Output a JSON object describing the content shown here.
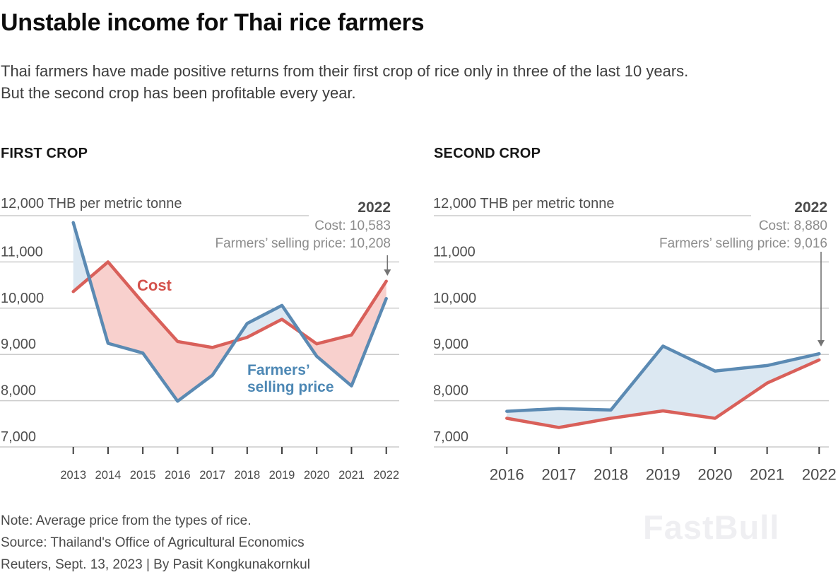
{
  "title": "Unstable income for Thai rice farmers",
  "subtitle": [
    "Thai farmers have made positive returns from their first crop of rice only in three of the last 10 years.",
    "But the second crop has been profitable every year."
  ],
  "colors": {
    "cost_line": "#d9605a",
    "price_line": "#5b8ab3",
    "cost_fill": "#f8d0cd",
    "price_fill": "#dce8f2",
    "cost_label": "#d4524c",
    "price_label": "#4c87b4",
    "grid": "#cccccc",
    "tick": "#3d3d3d",
    "tick_label": "#4a4a4a",
    "y_label": "#4f4f4f",
    "arrow": "#747474",
    "background": "#ffffff"
  },
  "chart_data": [
    {
      "type": "line",
      "title": "FIRST CROP",
      "x": [
        2013,
        2014,
        2015,
        2016,
        2017,
        2018,
        2019,
        2020,
        2021,
        2022
      ],
      "series": [
        {
          "name": "Cost",
          "role": "cost",
          "values": [
            10360,
            11000,
            10120,
            9280,
            9150,
            9370,
            9760,
            9230,
            9420,
            10583
          ]
        },
        {
          "name": "Farmers’ selling price",
          "role": "price",
          "values": [
            11850,
            9240,
            9030,
            7990,
            8550,
            9670,
            10060,
            8960,
            8320,
            10208
          ]
        }
      ],
      "unit_label": "12,000 THB per metric tonne",
      "ylabel": "THB per metric tonne",
      "ylim": [
        7000,
        12000
      ],
      "y_ticks": [
        7000,
        8000,
        9000,
        10000,
        11000,
        12000
      ],
      "grid": true,
      "fill_between": "price_above_cost_blue__cost_above_price_pink",
      "legend_position": "inline-labels",
      "callout": {
        "year": "2022",
        "cost_text": "Cost: 10,583",
        "price_text": "Farmers’ selling price: 10,208",
        "cost_value": 10583,
        "price_value": 10208
      }
    },
    {
      "type": "line",
      "title": "SECOND CROP",
      "x": [
        2016,
        2017,
        2018,
        2019,
        2020,
        2021,
        2022
      ],
      "series": [
        {
          "name": "Cost",
          "role": "cost",
          "values": [
            7620,
            7420,
            7620,
            7780,
            7620,
            8380,
            8880
          ]
        },
        {
          "name": "Farmers’ selling price",
          "role": "price",
          "values": [
            7770,
            7830,
            7800,
            9180,
            8640,
            8760,
            9016
          ]
        }
      ],
      "unit_label": "12,000 THB per metric tonne",
      "ylabel": "THB per metric tonne",
      "ylim": [
        7000,
        12000
      ],
      "y_ticks": [
        7000,
        8000,
        9000,
        10000,
        11000,
        12000
      ],
      "grid": true,
      "fill_between": "price_above_cost_blue__cost_above_price_pink",
      "legend_position": "none",
      "callout": {
        "year": "2022",
        "cost_text": "Cost: 8,880",
        "price_text": "Farmers’ selling price: 9,016",
        "cost_value": 8880,
        "price_value": 9016
      }
    }
  ],
  "footer": [
    "Note: Average price from the types of rice.",
    "Source: Thailand's Office of Agricultural Economics",
    "Reuters, Sept. 13, 2023 | By Pasit Kongkunakornkul"
  ],
  "watermark": "FastBull"
}
